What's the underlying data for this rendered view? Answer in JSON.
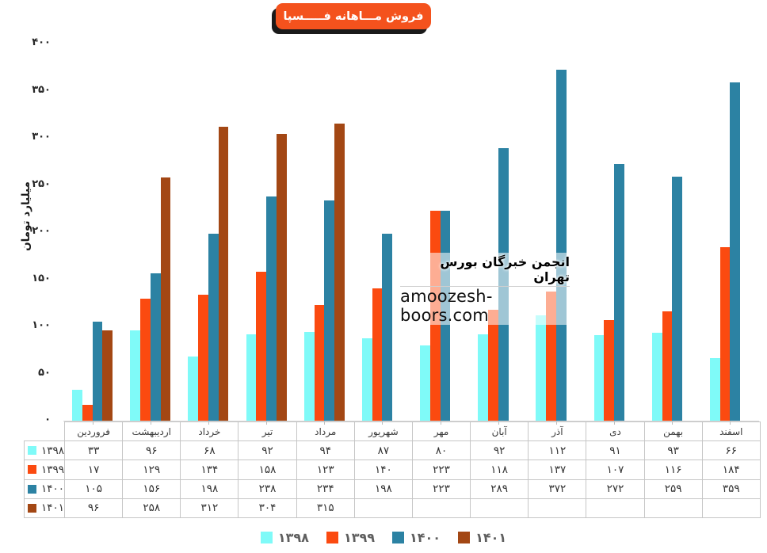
{
  "page": {
    "background": "#ffffff"
  },
  "title_badge": {
    "label": "فروش مـــاهانه فـــــسپا",
    "background": "#F4521D",
    "shadow_color": "#1a1a1a",
    "text_color": "#ffffff"
  },
  "watermark": {
    "line1": "انجمن خبرگان بورس تهران",
    "line2": "amoozesh-boors.com"
  },
  "digits_fa": "۰۱۲۳۴۵۶۷۸۹",
  "chart_data": {
    "type": "bar",
    "title": "فروش مـــاهانه فـــــسپا",
    "xlabel": "",
    "ylabel": "میلیارد تومان",
    "ylim": [
      0,
      400
    ],
    "ytick_step": 50,
    "grid": false,
    "legend_position": "bottom",
    "categories": [
      "فروردین",
      "اردیبهشت",
      "خرداد",
      "تیر",
      "مرداد",
      "شهریور",
      "مهر",
      "آبان",
      "آذر",
      "دی",
      "بهمن",
      "اسفند"
    ],
    "series": [
      {
        "name": "۱۳۹۸",
        "color": "#7FFAF8",
        "values": [
          33,
          96,
          68,
          92,
          94,
          87,
          80,
          92,
          112,
          91,
          93,
          66
        ]
      },
      {
        "name": "۱۳۹۹",
        "color": "#FB4A10",
        "values": [
          17,
          129,
          134,
          158,
          123,
          140,
          223,
          118,
          137,
          107,
          116,
          184
        ]
      },
      {
        "name": "۱۴۰۰",
        "color": "#2C82A3",
        "values": [
          105,
          156,
          198,
          238,
          234,
          198,
          223,
          289,
          372,
          272,
          259,
          359
        ]
      },
      {
        "name": "۱۴۰۱",
        "color": "#A34714",
        "values": [
          96,
          258,
          312,
          304,
          315,
          null,
          null,
          null,
          null,
          null,
          null,
          null
        ]
      }
    ],
    "axis_colors": {
      "axis_line": "#d5d5d5",
      "table_border": "#c6c6c6",
      "legend_text": "#5f5f5f"
    }
  }
}
